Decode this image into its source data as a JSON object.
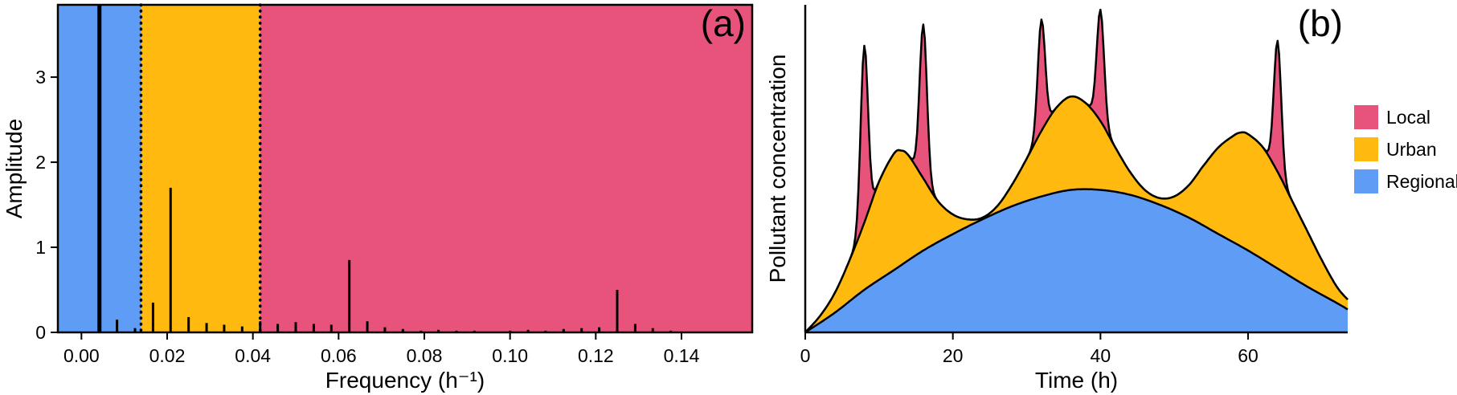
{
  "figure": {
    "background": "#FFFFFF"
  },
  "colors": {
    "local": "#E8537C",
    "urban": "#FFB90F",
    "regional": "#5E9CF5",
    "stem": "#000000",
    "axis": "#000000"
  },
  "legend": {
    "position": "right",
    "items": [
      {
        "label": "Local",
        "color_key": "local"
      },
      {
        "label": "Urban",
        "color_key": "urban"
      },
      {
        "label": "Regional",
        "color_key": "regional"
      }
    ]
  },
  "chart_data": [
    {
      "id": "a",
      "type": "bar",
      "panel_label": "(a)",
      "xlabel": "Frequency (h⁻¹)",
      "ylabel": "Amplitude",
      "xlim": [
        -0.0055,
        0.1565
      ],
      "ylim": [
        0,
        3.85
      ],
      "xticks": [
        0.0,
        0.02,
        0.04,
        0.06,
        0.08,
        0.1,
        0.12,
        0.14
      ],
      "yticks": [
        0,
        1,
        2,
        3
      ],
      "grid": false,
      "regions": [
        {
          "name": "Regional",
          "from": -0.0055,
          "to": 0.0139,
          "color": "#5E9CF5"
        },
        {
          "name": "Urban",
          "from": 0.0139,
          "to": 0.0417,
          "color": "#FFB90F"
        },
        {
          "name": "Local",
          "from": 0.0417,
          "to": 0.1565,
          "color": "#E8537C"
        }
      ],
      "boundary_lines": [
        0.0139,
        0.0417
      ],
      "stems": [
        [
          0.0042,
          4.2
        ],
        [
          0.0083,
          0.15
        ],
        [
          0.0125,
          0.05
        ],
        [
          0.0167,
          0.35
        ],
        [
          0.0208,
          1.7
        ],
        [
          0.025,
          0.18
        ],
        [
          0.0292,
          0.11
        ],
        [
          0.0333,
          0.09
        ],
        [
          0.0375,
          0.07
        ],
        [
          0.0417,
          0.13
        ],
        [
          0.0458,
          0.1
        ],
        [
          0.05,
          0.12
        ],
        [
          0.0542,
          0.1
        ],
        [
          0.0583,
          0.09
        ],
        [
          0.0625,
          0.85
        ],
        [
          0.0667,
          0.13
        ],
        [
          0.0708,
          0.06
        ],
        [
          0.075,
          0.04
        ],
        [
          0.0792,
          0.02
        ],
        [
          0.0833,
          0.03
        ],
        [
          0.0875,
          0.02
        ],
        [
          0.0917,
          0.02
        ],
        [
          0.0958,
          0.01
        ],
        [
          0.1,
          0.02
        ],
        [
          0.1042,
          0.03
        ],
        [
          0.1083,
          0.02
        ],
        [
          0.1125,
          0.04
        ],
        [
          0.1167,
          0.05
        ],
        [
          0.1208,
          0.06
        ],
        [
          0.125,
          0.5
        ],
        [
          0.1292,
          0.1
        ],
        [
          0.1333,
          0.05
        ],
        [
          0.1375,
          0.02
        ]
      ]
    },
    {
      "id": "b",
      "type": "area",
      "panel_label": "(b)",
      "xlabel": "Time (h)",
      "ylabel": "Pollutant concentration",
      "xlim": [
        0,
        73.5
      ],
      "ylim": [
        0,
        1
      ],
      "xticks": [
        0,
        20,
        40,
        60
      ],
      "grid": false,
      "series": [
        {
          "name": "Regional",
          "color": "#5E9CF5",
          "boundary": [
            [
              0,
              0.0
            ],
            [
              4,
              0.06
            ],
            [
              8,
              0.13
            ],
            [
              12,
              0.19
            ],
            [
              16,
              0.25
            ],
            [
              20,
              0.3
            ],
            [
              24,
              0.345
            ],
            [
              28,
              0.385
            ],
            [
              32,
              0.415
            ],
            [
              36,
              0.435
            ],
            [
              40,
              0.435
            ],
            [
              44,
              0.42
            ],
            [
              48,
              0.39
            ],
            [
              52,
              0.35
            ],
            [
              56,
              0.3
            ],
            [
              60,
              0.25
            ],
            [
              64,
              0.195
            ],
            [
              68,
              0.14
            ],
            [
              72,
              0.09
            ],
            [
              73.5,
              0.07
            ]
          ]
        },
        {
          "name": "Urban",
          "color": "#FFB90F",
          "boundary_cumulative": [
            [
              0,
              0.0
            ],
            [
              2,
              0.05
            ],
            [
              4,
              0.12
            ],
            [
              6,
              0.22
            ],
            [
              8,
              0.335
            ],
            [
              10,
              0.46
            ],
            [
              12,
              0.545
            ],
            [
              13,
              0.555
            ],
            [
              14,
              0.54
            ],
            [
              16,
              0.47
            ],
            [
              18,
              0.4
            ],
            [
              20,
              0.36
            ],
            [
              22,
              0.345
            ],
            [
              24,
              0.35
            ],
            [
              26,
              0.385
            ],
            [
              28,
              0.45
            ],
            [
              30,
              0.53
            ],
            [
              32,
              0.615
            ],
            [
              34,
              0.685
            ],
            [
              36,
              0.72
            ],
            [
              38,
              0.7
            ],
            [
              40,
              0.645
            ],
            [
              42,
              0.565
            ],
            [
              44,
              0.49
            ],
            [
              46,
              0.435
            ],
            [
              48,
              0.41
            ],
            [
              50,
              0.415
            ],
            [
              52,
              0.45
            ],
            [
              54,
              0.51
            ],
            [
              56,
              0.565
            ],
            [
              58,
              0.6
            ],
            [
              59,
              0.61
            ],
            [
              60,
              0.605
            ],
            [
              62,
              0.565
            ],
            [
              64,
              0.49
            ],
            [
              66,
              0.4
            ],
            [
              68,
              0.31
            ],
            [
              70,
              0.22
            ],
            [
              72,
              0.14
            ],
            [
              73.5,
              0.1
            ]
          ]
        },
        {
          "name": "Local",
          "color": "#E8537C",
          "spikes": [
            {
              "t": 8,
              "height": 0.54,
              "width": 0.7
            },
            {
              "t": 16,
              "height": 0.47,
              "width": 0.7
            },
            {
              "t": 32,
              "height": 0.34,
              "width": 0.7
            },
            {
              "t": 40,
              "height": 0.34,
              "width": 0.7
            },
            {
              "t": 64,
              "height": 0.4,
              "width": 0.7
            }
          ]
        }
      ]
    }
  ]
}
